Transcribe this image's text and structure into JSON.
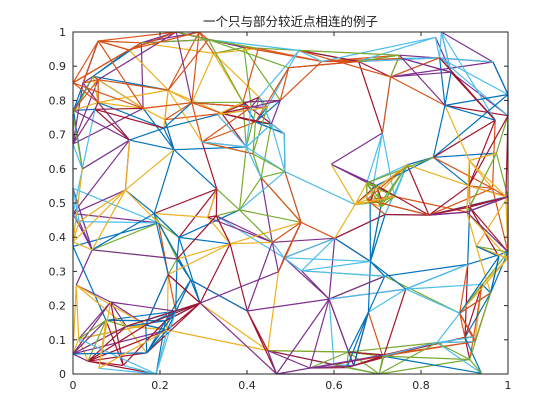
{
  "chart_data": {
    "type": "line",
    "title": "一个只与部分较近点相连的例子",
    "xlabel": "",
    "ylabel": "",
    "xlim": [
      0,
      1
    ],
    "ylim": [
      0,
      1
    ],
    "xticks": [
      "0",
      "0.2",
      "0.4",
      "0.6",
      "0.8",
      "1"
    ],
    "yticks": [
      "0",
      "0.1",
      "0.2",
      "0.3",
      "0.4",
      "0.5",
      "0.6",
      "0.7",
      "0.8",
      "0.9",
      "1"
    ],
    "grid": false,
    "legend": "none",
    "colors": [
      "#0072BD",
      "#D95319",
      "#EDB120",
      "#7E2F8E",
      "#77AC30",
      "#4DBEEE",
      "#A2142F"
    ]
  }
}
